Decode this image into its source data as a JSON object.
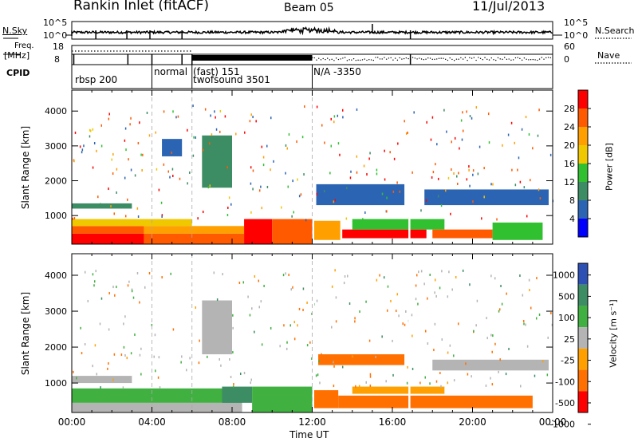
{
  "header": {
    "title": "Rankin Inlet (fitACF)",
    "beam": "Beam 05",
    "date": "11/Jul/2013"
  },
  "status_panels": {
    "nsky_label": "N.Sky",
    "nsky_ticks": [
      "10^5",
      "10^0"
    ],
    "nsearch_label": "N.Search",
    "nsearch_ticks": [
      "10^5",
      "10^0"
    ],
    "freq_label": "Freq.",
    "freq_unit": "[MHz]",
    "freq_ticks": [
      "18",
      "8"
    ],
    "nave_label": "Nave",
    "nave_ticks": [
      "60",
      "0"
    ],
    "cpid_label": "CPID",
    "cpid_segments": [
      {
        "start": 0,
        "end": 4,
        "labels": [
          "rbsp 200"
        ]
      },
      {
        "start": 4,
        "end": 6,
        "labels": [
          "normal"
        ]
      },
      {
        "start": 6,
        "end": 12,
        "labels": [
          "(fast) 151",
          "twofsound 3501"
        ]
      },
      {
        "start": 12,
        "end": 24,
        "labels": [
          "N/A -3350"
        ]
      }
    ]
  },
  "colorbars": {
    "power": {
      "label": "Power [dB]",
      "ticks": [
        "28",
        "24",
        "20",
        "16",
        "12",
        "8",
        "4"
      ],
      "colors": [
        "#ff0000",
        "#ff5a00",
        "#ffa000",
        "#f0c800",
        "#30c030",
        "#3c8c64",
        "#2c64b4",
        "#0000ff"
      ]
    },
    "velocity": {
      "label": "Velocity [m s⁻¹]",
      "ticks": [
        "1000",
        "500",
        "100",
        "25",
        "-25",
        "-100",
        "-500",
        "-1000"
      ],
      "colors": [
        "#2c50b4",
        "#3c8c64",
        "#40b040",
        "#b4b4b4",
        "#ffa000",
        "#ff7000",
        "#ff0000"
      ]
    }
  },
  "chart_data": [
    {
      "type": "heatmap",
      "name": "power",
      "ylabel": "Slant Range [km]",
      "xlim": [
        0,
        24
      ],
      "ylim": [
        180,
        4600
      ],
      "yticks": [
        1000,
        2000,
        3000,
        4000
      ],
      "xtick_labels": [
        "00:00",
        "04:00",
        "08:00",
        "12:00",
        "16:00",
        "20:00",
        "00:00"
      ],
      "mode_lines_hours": [
        4,
        6,
        12
      ],
      "regions": [
        {
          "t0": 0.0,
          "t1": 3.6,
          "r0": 180,
          "r1": 480,
          "level": "28"
        },
        {
          "t0": 0.0,
          "t1": 3.6,
          "r0": 480,
          "r1": 700,
          "level": "24"
        },
        {
          "t0": 0.0,
          "t1": 6.0,
          "r0": 700,
          "r1": 900,
          "level": "16"
        },
        {
          "t0": 3.6,
          "t1": 8.6,
          "r0": 180,
          "r1": 480,
          "level": "24"
        },
        {
          "t0": 3.6,
          "t1": 8.6,
          "r0": 480,
          "r1": 700,
          "level": "20"
        },
        {
          "t0": 8.6,
          "t1": 10.0,
          "r0": 180,
          "r1": 900,
          "level": "28"
        },
        {
          "t0": 10.0,
          "t1": 12.0,
          "r0": 180,
          "r1": 900,
          "level": "24"
        },
        {
          "t0": 12.0,
          "t1": 13.4,
          "r0": 300,
          "r1": 850,
          "level": "20"
        },
        {
          "t0": 13.5,
          "t1": 17.7,
          "r0": 350,
          "r1": 600,
          "level": "28"
        },
        {
          "t0": 14.0,
          "t1": 18.6,
          "r0": 600,
          "r1": 900,
          "level": "12"
        },
        {
          "t0": 18.0,
          "t1": 21.0,
          "r0": 350,
          "r1": 600,
          "level": "24"
        },
        {
          "t0": 21.0,
          "t1": 23.5,
          "r0": 300,
          "r1": 800,
          "level": "12"
        },
        {
          "t0": 12.2,
          "t1": 16.6,
          "r0": 1300,
          "r1": 1900,
          "level": "4"
        },
        {
          "t0": 17.6,
          "t1": 23.8,
          "r0": 1300,
          "r1": 1750,
          "level": "4"
        },
        {
          "t0": 6.5,
          "t1": 8.0,
          "r0": 1800,
          "r1": 3300,
          "level": "8"
        },
        {
          "t0": 4.5,
          "t1": 5.5,
          "r0": 2700,
          "r1": 3200,
          "level": "4"
        },
        {
          "t0": 0.0,
          "t1": 3.0,
          "r0": 1200,
          "r1": 1350,
          "level": "8"
        }
      ]
    },
    {
      "type": "heatmap",
      "name": "velocity",
      "ylabel": "Slant Range [km]",
      "xlabel": "Time UT",
      "xlim": [
        0,
        24
      ],
      "ylim": [
        180,
        4600
      ],
      "yticks": [
        1000,
        2000,
        3000,
        4000
      ],
      "xtick_labels": [
        "00:00",
        "04:00",
        "08:00",
        "12:00",
        "16:00",
        "20:00",
        "00:00"
      ],
      "mode_lines_hours": [
        4,
        6,
        12
      ],
      "regions": [
        {
          "t0": 0.0,
          "t1": 8.5,
          "r0": 180,
          "r1": 450,
          "level": "25"
        },
        {
          "t0": 0.0,
          "t1": 8.5,
          "r0": 450,
          "r1": 850,
          "level": "100"
        },
        {
          "t0": 7.5,
          "t1": 9.0,
          "r0": 450,
          "r1": 900,
          "level": "500"
        },
        {
          "t0": 9.0,
          "t1": 12.0,
          "r0": 180,
          "r1": 900,
          "level": "100"
        },
        {
          "t0": 12.0,
          "t1": 13.3,
          "r0": 300,
          "r1": 800,
          "level": "-100"
        },
        {
          "t0": 13.3,
          "t1": 23.0,
          "r0": 300,
          "r1": 650,
          "level": "-100"
        },
        {
          "t0": 14.0,
          "t1": 18.6,
          "r0": 700,
          "r1": 900,
          "level": "-25"
        },
        {
          "t0": 12.3,
          "t1": 16.6,
          "r0": 1500,
          "r1": 1800,
          "level": "-100"
        },
        {
          "t0": 18.0,
          "t1": 23.8,
          "r0": 1350,
          "r1": 1650,
          "level": "25"
        },
        {
          "t0": 6.5,
          "t1": 8.0,
          "r0": 1800,
          "r1": 3300,
          "level": "25"
        },
        {
          "t0": 0.0,
          "t1": 3.0,
          "r0": 1000,
          "r1": 1200,
          "level": "25"
        }
      ]
    }
  ]
}
